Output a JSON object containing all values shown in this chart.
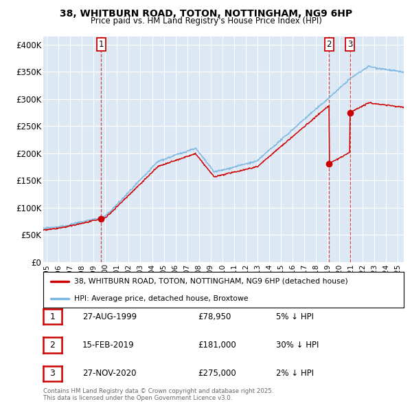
{
  "title1": "38, WHITBURN ROAD, TOTON, NOTTINGHAM, NG9 6HP",
  "title2": "Price paid vs. HM Land Registry's House Price Index (HPI)",
  "ylabel_ticks": [
    "£0",
    "£50K",
    "£100K",
    "£150K",
    "£200K",
    "£250K",
    "£300K",
    "£350K",
    "£400K"
  ],
  "ytick_values": [
    0,
    50000,
    100000,
    150000,
    200000,
    250000,
    300000,
    350000,
    400000
  ],
  "ylim": [
    0,
    415000
  ],
  "xlim_start": 1994.7,
  "xlim_end": 2025.5,
  "plot_bg_color": "#dce9f5",
  "grid_color": "#ffffff",
  "hpi_line_color": "#7ab5e0",
  "price_line_color": "#cc0000",
  "sales": [
    {
      "num": "1",
      "date_dec": 1999.65,
      "price": 78950
    },
    {
      "num": "2",
      "date_dec": 2019.12,
      "price": 181000
    },
    {
      "num": "3",
      "date_dec": 2020.9,
      "price": 275000
    }
  ],
  "legend_line1": "38, WHITBURN ROAD, TOTON, NOTTINGHAM, NG9 6HP (detached house)",
  "legend_line2": "HPI: Average price, detached house, Broxtowe",
  "table_entries": [
    {
      "num": "1",
      "date": "27-AUG-1999",
      "price": "£78,950",
      "hpi": "5% ↓ HPI"
    },
    {
      "num": "2",
      "date": "15-FEB-2019",
      "price": "£181,000",
      "hpi": "30% ↓ HPI"
    },
    {
      "num": "3",
      "date": "27-NOV-2020",
      "price": "£275,000",
      "hpi": "2% ↓ HPI"
    }
  ],
  "footer": "Contains HM Land Registry data © Crown copyright and database right 2025.\nThis data is licensed under the Open Government Licence v3.0.",
  "xticks": [
    1995,
    1996,
    1997,
    1998,
    1999,
    2000,
    2001,
    2002,
    2003,
    2004,
    2005,
    2006,
    2007,
    2008,
    2009,
    2010,
    2011,
    2012,
    2013,
    2014,
    2015,
    2016,
    2017,
    2018,
    2019,
    2020,
    2021,
    2022,
    2023,
    2024,
    2025
  ]
}
